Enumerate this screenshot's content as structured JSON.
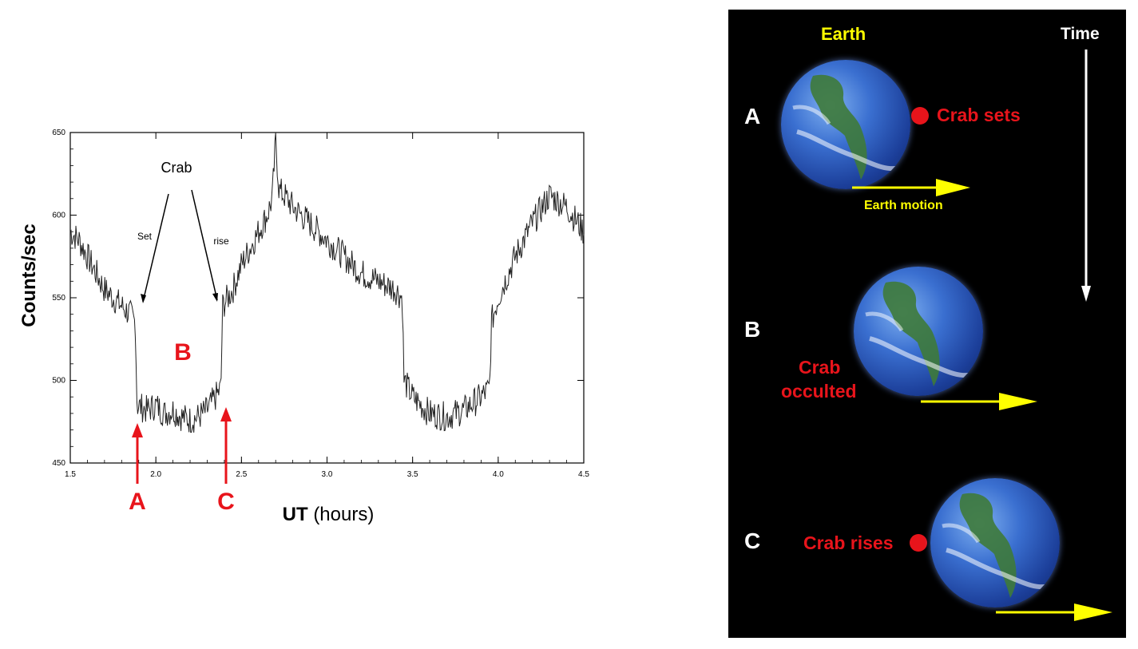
{
  "chart_data": {
    "type": "line",
    "xlabel_bold": "UT",
    "xlabel_rest": "(hours)",
    "ylabel": "Counts/sec",
    "xlim": [
      1.5,
      4.5
    ],
    "ylim": [
      450,
      650
    ],
    "xticks": [
      "1.5",
      "2.0",
      "2.5",
      "3.0",
      "3.5",
      "4.0",
      "4.5"
    ],
    "yticks": [
      "450",
      "500",
      "550",
      "600",
      "650"
    ],
    "series": [
      {
        "x": [
          1.5,
          1.55,
          1.6,
          1.65,
          1.7,
          1.75,
          1.8,
          1.85,
          1.88,
          1.89,
          1.95,
          2.0,
          2.05,
          2.1,
          2.15,
          2.2,
          2.25,
          2.3,
          2.38,
          2.39,
          2.45,
          2.5,
          2.55,
          2.6,
          2.65,
          2.68,
          2.7,
          2.72,
          2.75,
          2.8,
          2.9,
          3.0,
          3.1,
          3.2,
          3.3,
          3.4,
          3.44,
          3.45,
          3.5,
          3.6,
          3.7,
          3.8,
          3.9,
          3.95,
          3.96,
          4.0,
          4.1,
          4.2,
          4.3,
          4.4,
          4.5
        ],
        "y": [
          590,
          585,
          575,
          565,
          555,
          550,
          545,
          540,
          535,
          485,
          482,
          485,
          480,
          482,
          478,
          476,
          478,
          482,
          495,
          545,
          555,
          570,
          580,
          590,
          600,
          610,
          645,
          615,
          612,
          605,
          595,
          585,
          575,
          565,
          560,
          555,
          550,
          500,
          490,
          480,
          478,
          482,
          490,
          495,
          535,
          550,
          575,
          595,
          612,
          605,
          590
        ]
      }
    ],
    "annotations": {
      "crab": "Crab",
      "set": "Set",
      "rise": "rise",
      "b": "B",
      "a": "A",
      "c": "C"
    }
  },
  "diagram": {
    "earth_label": "Earth",
    "time_label": "Time",
    "row_a": "A",
    "row_b": "B",
    "row_c": "C",
    "crab_sets": "Crab sets",
    "earth_motion": "Earth motion",
    "crab_occulted_1": "Crab",
    "crab_occulted_2": "occulted",
    "crab_rises": "Crab rises"
  },
  "colors": {
    "red": "#e8141b",
    "yellow": "#ffff00",
    "white": "#ffffff"
  }
}
